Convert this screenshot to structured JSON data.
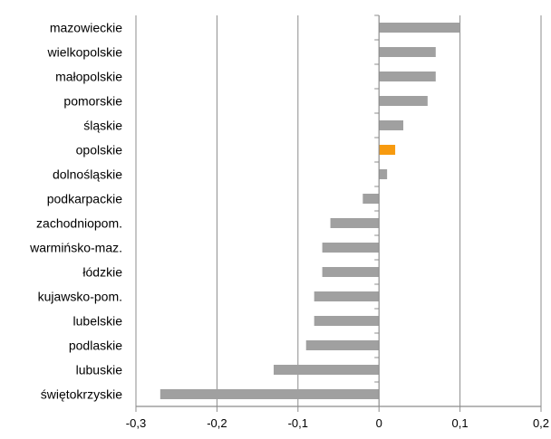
{
  "chart_data": {
    "type": "bar",
    "orientation": "horizontal",
    "title": "",
    "xlabel": "",
    "ylabel": "",
    "categories": [
      "mazowieckie",
      "wielkopolskie",
      "małopolskie",
      "pomorskie",
      "śląskie",
      "opolskie",
      "dolnośląskie",
      "podkarpackie",
      "zachodniopom.",
      "warmińsko-maz.",
      "łódzkie",
      "kujawsko-pom.",
      "lubelskie",
      "podlaskie",
      "lubuskie",
      "świętokrzyskie"
    ],
    "values": [
      0.1,
      0.07,
      0.07,
      0.06,
      0.03,
      0.02,
      0.01,
      -0.02,
      -0.06,
      -0.07,
      -0.07,
      -0.08,
      -0.08,
      -0.09,
      -0.13,
      -0.27
    ],
    "xlim": [
      -0.3,
      0.2
    ],
    "xticks": [
      -0.3,
      -0.2,
      -0.1,
      0,
      0.1,
      0.2
    ],
    "xtick_labels": [
      "-0,3",
      "-0,2",
      "-0,1",
      "0",
      "0,1",
      "0,2"
    ],
    "grid": "vertical",
    "legend": "none",
    "highlight_category": "opolskie",
    "colors": {
      "bar": "#a0a0a0",
      "highlight": "#f79a0f",
      "grid": "#8c8c8c",
      "axis": "#8c8c8c",
      "text": "#000000"
    }
  }
}
